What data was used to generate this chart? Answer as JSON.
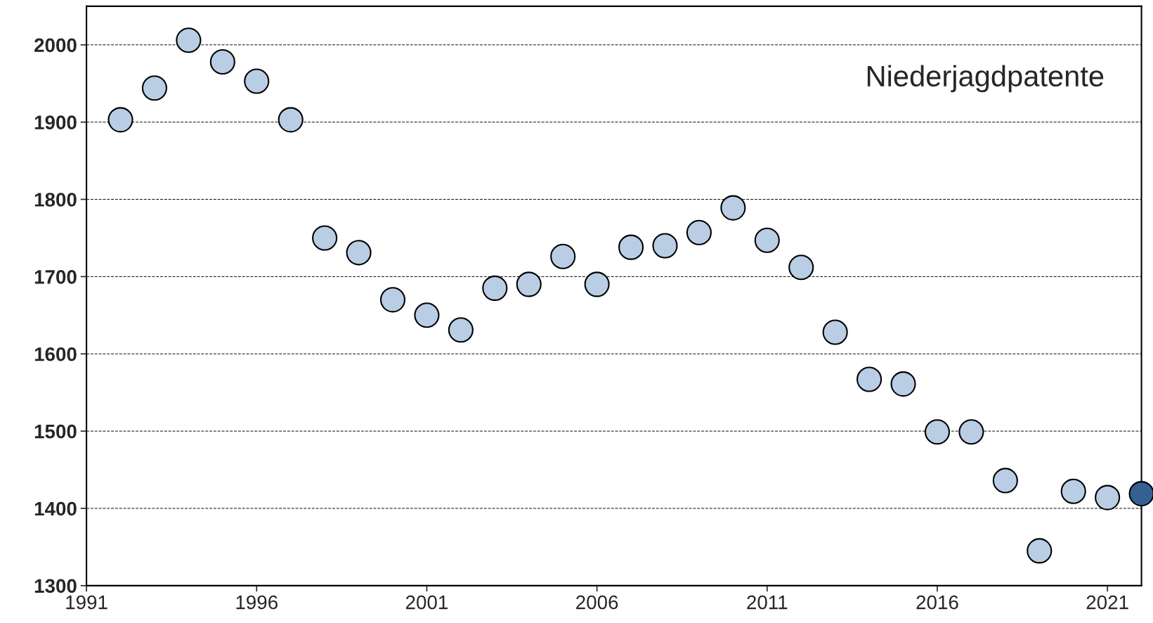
{
  "chart_data": {
    "type": "scatter",
    "title": "Niederjagdpatente",
    "x": [
      1992,
      1993,
      1994,
      1995,
      1996,
      1997,
      1998,
      1999,
      2000,
      2001,
      2002,
      2003,
      2004,
      2005,
      2006,
      2007,
      2008,
      2009,
      2010,
      2011,
      2012,
      2013,
      2014,
      2015,
      2016,
      2017,
      2018,
      2019,
      2020,
      2021,
      2022
    ],
    "values": [
      1903,
      1944,
      2006,
      1978,
      1953,
      1903,
      1750,
      1731,
      1670,
      1650,
      1631,
      1685,
      1690,
      1726,
      1690,
      1738,
      1740,
      1757,
      1789,
      1747,
      1712,
      1628,
      1567,
      1561,
      1499,
      1499,
      1436,
      1345,
      1422,
      1414,
      1419
    ],
    "colors": [
      "#b9cde5",
      "#b9cde5",
      "#b9cde5",
      "#b9cde5",
      "#b9cde5",
      "#b9cde5",
      "#b9cde5",
      "#b9cde5",
      "#b9cde5",
      "#b9cde5",
      "#b9cde5",
      "#b9cde5",
      "#b9cde5",
      "#b9cde5",
      "#b9cde5",
      "#b9cde5",
      "#b9cde5",
      "#b9cde5",
      "#b9cde5",
      "#b9cde5",
      "#b9cde5",
      "#b9cde5",
      "#b9cde5",
      "#b9cde5",
      "#b9cde5",
      "#b9cde5",
      "#b9cde5",
      "#b9cde5",
      "#b9cde5",
      "#b9cde5",
      "#376092"
    ],
    "xlim": [
      1991,
      2022
    ],
    "xticks": [
      1991,
      1996,
      2001,
      2006,
      2011,
      2016,
      2021
    ],
    "ylim": [
      1300,
      2050
    ],
    "yticks": [
      1300,
      1400,
      1500,
      1600,
      1700,
      1800,
      1900,
      2000
    ],
    "grid": "y",
    "marker": "circle"
  }
}
